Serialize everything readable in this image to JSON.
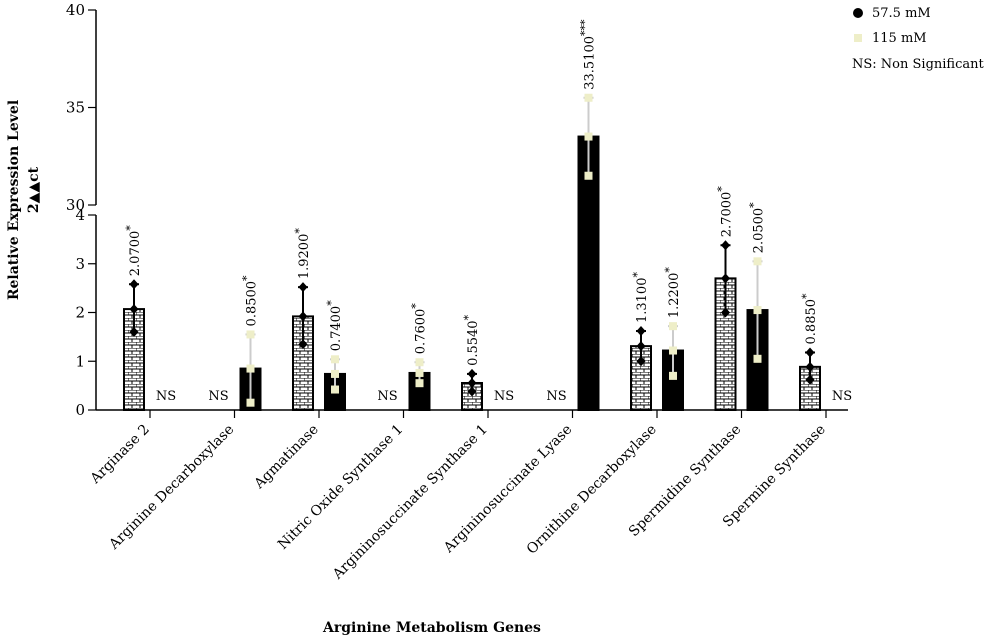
{
  "chart_data": {
    "type": "bar",
    "xlabel": "Arginine Metabolism Genes",
    "ylabel": "Relative Expression Level",
    "ylabel2": "2▲▲ct",
    "y_axis_break": true,
    "lower_ylim": [
      0,
      4
    ],
    "upper_ylim": [
      30,
      40
    ],
    "lower_yticks": [
      "0",
      "1",
      "2",
      "3",
      "4"
    ],
    "upper_yticks": [
      "30",
      "35",
      "40"
    ],
    "legend": {
      "position": "top-right",
      "items": [
        "57.5 mM",
        "115 mM"
      ],
      "note": "NS: Non Significant"
    },
    "categories": [
      "Arginase 2",
      "Arginine Decarboxylase",
      "Agmatinase",
      "Nitric Oxide Synthase 1",
      "Argininosuccinate Synthase 1",
      "Argininosuccinate Lyase",
      "Ornithine Decarboxylase",
      "Spermidine Synthase",
      "Spermine Synthase"
    ],
    "series": [
      {
        "name": "57.5 mM",
        "pattern": "brick",
        "color": "#000000",
        "values": [
          2.07,
          null,
          1.92,
          null,
          0.554,
          null,
          1.31,
          2.7,
          0.885
        ],
        "labels": [
          "2.0700",
          "NS",
          "1.9200",
          "NS",
          "0.5540",
          "NS",
          "1.3100",
          "2.7000",
          "0.8850"
        ],
        "stars": [
          "*",
          "",
          "*",
          "",
          "*",
          "",
          "*",
          "*",
          "*"
        ],
        "error_high": [
          2.58,
          null,
          2.52,
          null,
          0.74,
          null,
          1.62,
          3.38,
          1.18
        ],
        "error_low": [
          1.6,
          null,
          1.35,
          null,
          0.38,
          null,
          1.0,
          2.0,
          0.62
        ]
      },
      {
        "name": "115 mM",
        "pattern": "solid",
        "color": "#000000",
        "values": [
          null,
          0.85,
          0.74,
          0.76,
          null,
          33.51,
          1.22,
          2.05,
          null
        ],
        "labels": [
          "NS",
          "0.8500",
          "0.7400",
          "0.7600",
          "NS",
          "33.5100",
          "1.2200",
          "2.0500",
          "NS"
        ],
        "stars": [
          "",
          "*",
          "*",
          "*",
          "",
          "***",
          "*",
          "*",
          ""
        ],
        "error_high": [
          null,
          1.55,
          1.04,
          0.98,
          null,
          35.5,
          1.72,
          3.05,
          null
        ],
        "error_low": [
          null,
          0.15,
          0.42,
          0.55,
          null,
          31.5,
          0.7,
          1.05,
          null
        ]
      }
    ],
    "point_color_series1": "#000000",
    "point_color_series2": "#eeeec8"
  }
}
